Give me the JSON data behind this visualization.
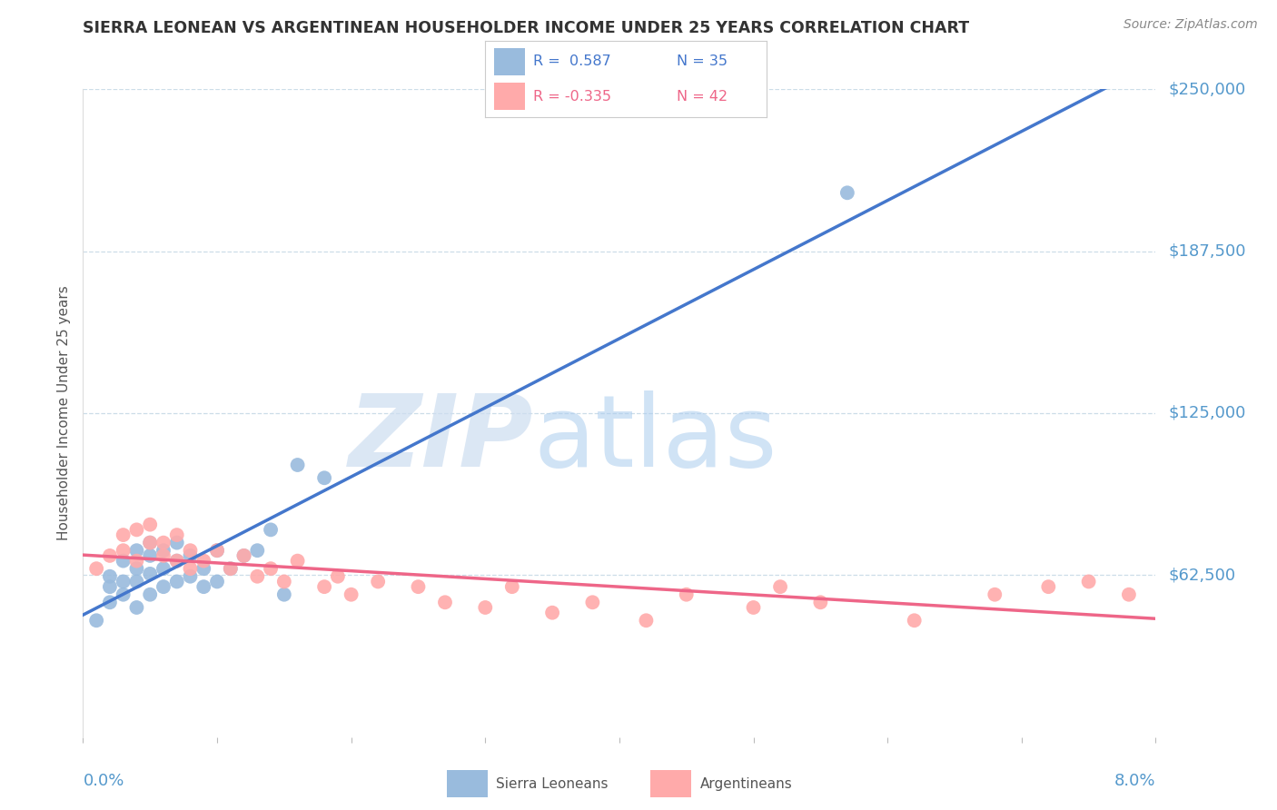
{
  "title": "SIERRA LEONEAN VS ARGENTINEAN HOUSEHOLDER INCOME UNDER 25 YEARS CORRELATION CHART",
  "source": "Source: ZipAtlas.com",
  "ylabel": "Householder Income Under 25 years",
  "xlim": [
    0.0,
    0.08
  ],
  "ylim": [
    0,
    250000
  ],
  "yticks": [
    0,
    62500,
    125000,
    187500,
    250000
  ],
  "ytick_labels": [
    "",
    "$62,500",
    "$125,000",
    "$187,500",
    "$250,000"
  ],
  "legend_r_blue": "R =  0.587",
  "legend_n_blue": "N = 35",
  "legend_r_pink": "R = -0.335",
  "legend_n_pink": "N = 42",
  "blue_scatter_color": "#99BBDD",
  "pink_scatter_color": "#FFAAAA",
  "blue_line_color": "#4477CC",
  "pink_line_color": "#EE6688",
  "dash_line_color": "#AACCEE",
  "grid_color": "#CCDDE8",
  "axis_tick_color": "#5599CC",
  "ylabel_color": "#555555",
  "title_color": "#333333",
  "source_color": "#888888",
  "watermark_zip_color": "#CCDDF0",
  "watermark_atlas_color": "#AACCEE",
  "sierra_x": [
    0.001,
    0.002,
    0.002,
    0.002,
    0.003,
    0.003,
    0.003,
    0.004,
    0.004,
    0.004,
    0.004,
    0.005,
    0.005,
    0.005,
    0.005,
    0.006,
    0.006,
    0.006,
    0.007,
    0.007,
    0.007,
    0.008,
    0.008,
    0.009,
    0.009,
    0.01,
    0.01,
    0.011,
    0.012,
    0.013,
    0.014,
    0.016,
    0.018,
    0.057,
    0.015
  ],
  "sierra_y": [
    45000,
    52000,
    58000,
    62000,
    55000,
    60000,
    68000,
    50000,
    65000,
    72000,
    60000,
    55000,
    63000,
    70000,
    75000,
    58000,
    65000,
    72000,
    60000,
    68000,
    75000,
    62000,
    70000,
    58000,
    65000,
    60000,
    72000,
    65000,
    70000,
    72000,
    80000,
    105000,
    100000,
    210000,
    55000
  ],
  "arg_x": [
    0.001,
    0.002,
    0.003,
    0.003,
    0.004,
    0.004,
    0.005,
    0.005,
    0.006,
    0.006,
    0.007,
    0.007,
    0.008,
    0.008,
    0.009,
    0.01,
    0.011,
    0.012,
    0.013,
    0.014,
    0.015,
    0.016,
    0.018,
    0.019,
    0.02,
    0.022,
    0.025,
    0.027,
    0.03,
    0.032,
    0.035,
    0.038,
    0.042,
    0.045,
    0.05,
    0.052,
    0.055,
    0.062,
    0.068,
    0.072,
    0.075,
    0.078
  ],
  "arg_y": [
    65000,
    70000,
    72000,
    78000,
    68000,
    80000,
    75000,
    82000,
    70000,
    75000,
    68000,
    78000,
    65000,
    72000,
    68000,
    72000,
    65000,
    70000,
    62000,
    65000,
    60000,
    68000,
    58000,
    62000,
    55000,
    60000,
    58000,
    52000,
    50000,
    58000,
    48000,
    52000,
    45000,
    55000,
    50000,
    58000,
    52000,
    45000,
    55000,
    58000,
    60000,
    55000
  ],
  "blue_intercept": 45000,
  "blue_slope": 2200000,
  "pink_intercept": 72000,
  "pink_slope": -250000
}
